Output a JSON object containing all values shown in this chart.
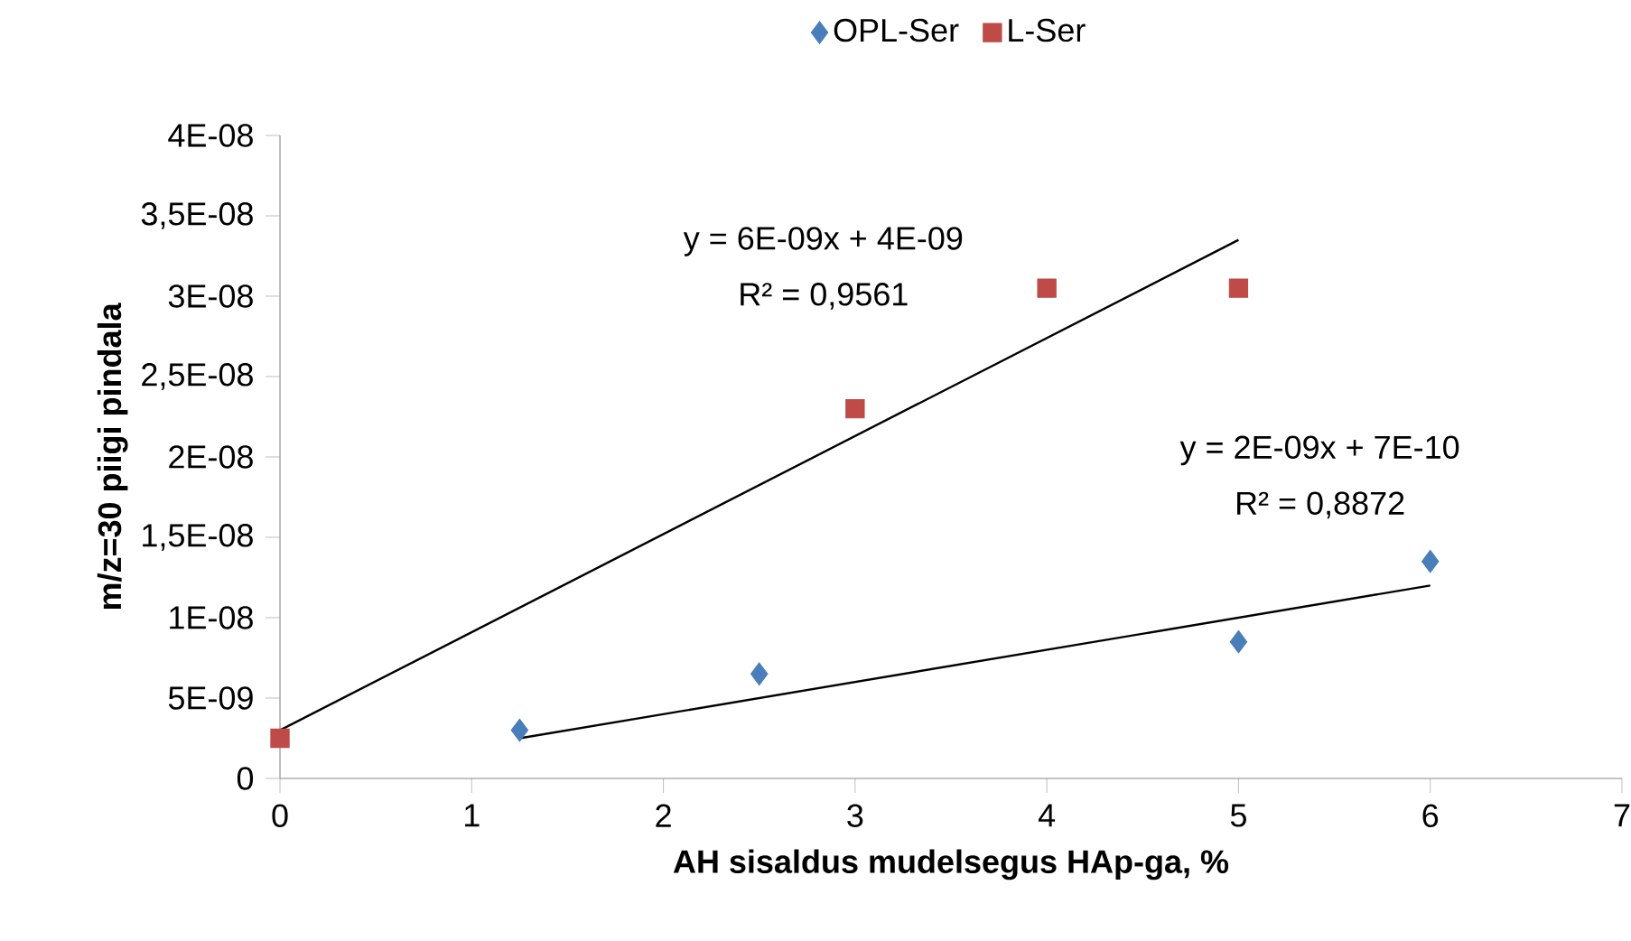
{
  "chart_data": {
    "type": "scatter",
    "xlabel": "AH sisaldus mudelsegus HAp-ga, %",
    "ylabel": "m/z=30 piigi pindala",
    "xlim": [
      0,
      7
    ],
    "xticks": [
      0,
      1,
      2,
      3,
      4,
      5,
      6,
      7
    ],
    "ylim": [
      0,
      4e-08
    ],
    "yticks": [
      0,
      {
        "value": 5e-09,
        "label": "5E-09"
      },
      {
        "value": 1e-08,
        "label": "1E-08"
      },
      {
        "value": 1.5e-08,
        "label": "1,5E-08"
      },
      {
        "value": 2e-08,
        "label": "2E-08"
      },
      {
        "value": 2.5e-08,
        "label": "2,5E-08"
      },
      {
        "value": 3e-08,
        "label": "3E-08"
      },
      {
        "value": 3.5e-08,
        "label": "3,5E-08"
      },
      {
        "value": 4e-08,
        "label": "4E-08"
      }
    ],
    "grid": false,
    "legend": "top",
    "series": [
      {
        "name": "OPL-Ser",
        "marker": "diamond",
        "color": "#4a7ebb",
        "x": [
          1.25,
          2.5,
          5,
          6
        ],
        "values": [
          3e-09,
          6.5e-09,
          8.5e-09,
          1.35e-08
        ]
      },
      {
        "name": "L-Ser",
        "marker": "square",
        "color": "#be4b48",
        "x": [
          0,
          3,
          4,
          5
        ],
        "values": [
          2.5e-09,
          2.3e-08,
          3.05e-08,
          3.05e-08
        ]
      },
      {
        "type": "line",
        "marker": "none",
        "color": "#000000",
        "x": [
          0,
          5
        ],
        "values": [
          3e-09,
          3.35e-08
        ]
      },
      {
        "type": "line",
        "marker": "none",
        "color": "#000000",
        "x": [
          1.25,
          6
        ],
        "values": [
          2.5e-09,
          1.2e-08
        ]
      }
    ],
    "annotations": [
      "y = 6E-09x + 4E-09",
      "R² = 0,9561",
      "y = 2E-09x + 7E-10",
      "R² = 0,8872"
    ]
  }
}
